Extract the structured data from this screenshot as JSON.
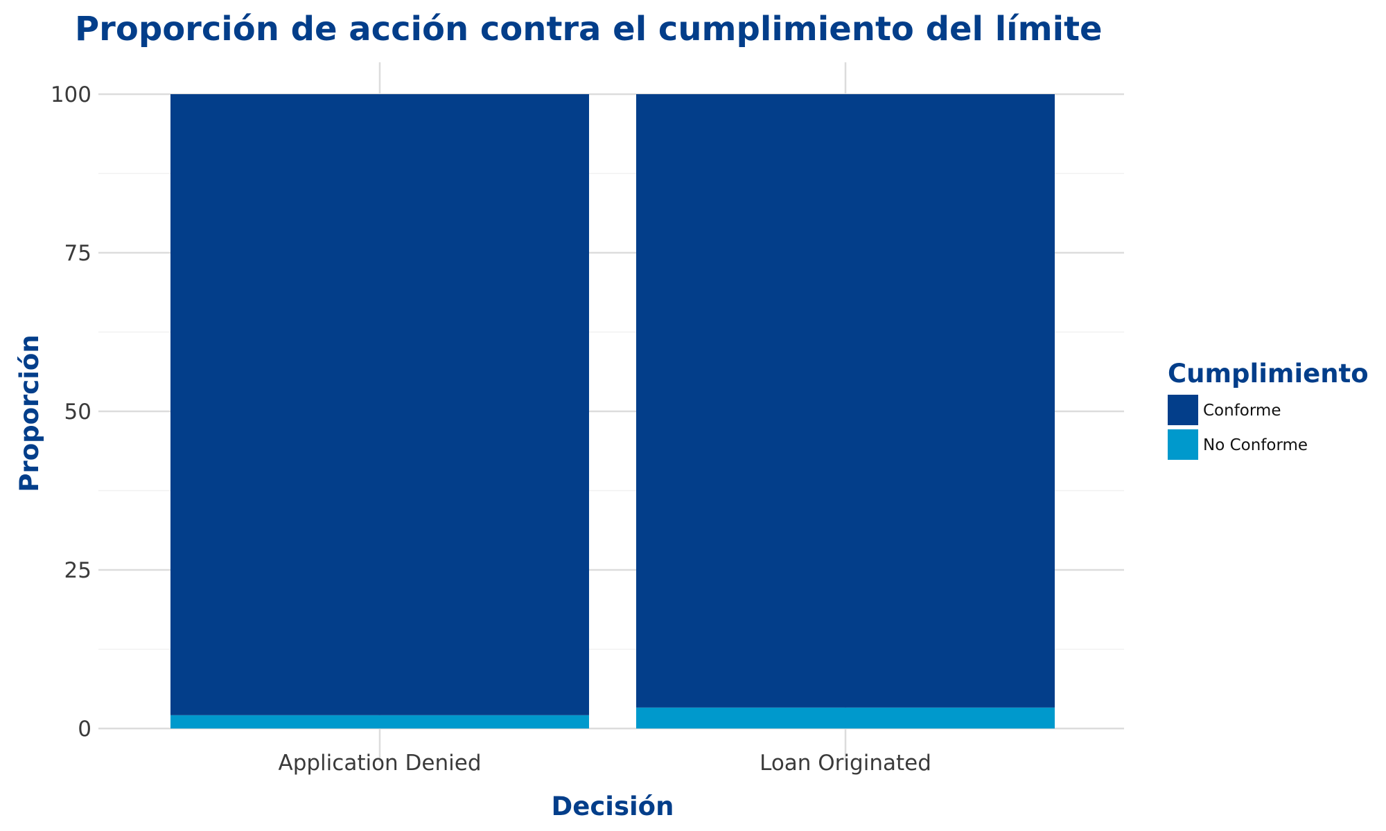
{
  "chart_data": {
    "type": "bar",
    "stacked": true,
    "title": "Proporción de acción contra el cumplimiento del límite",
    "xlabel": "Decisión",
    "ylabel": "Proporción",
    "categories": [
      "Application Denied",
      "Loan Originated"
    ],
    "series": [
      {
        "name": "No Conforme",
        "values": [
          2.1,
          3.3
        ],
        "color": "#0099CC"
      },
      {
        "name": "Conforme",
        "values": [
          97.9,
          96.7
        ],
        "color": "#033E8A"
      }
    ],
    "ylim": [
      0,
      100
    ],
    "yticks": [
      "0",
      "25",
      "50",
      "75",
      "100"
    ],
    "grid": true,
    "legend": {
      "title": "Cumplimiento",
      "position": "right",
      "items": [
        {
          "label": "Conforme",
          "color": "#033E8A"
        },
        {
          "label": "No Conforme",
          "color": "#0099CC"
        }
      ]
    }
  }
}
